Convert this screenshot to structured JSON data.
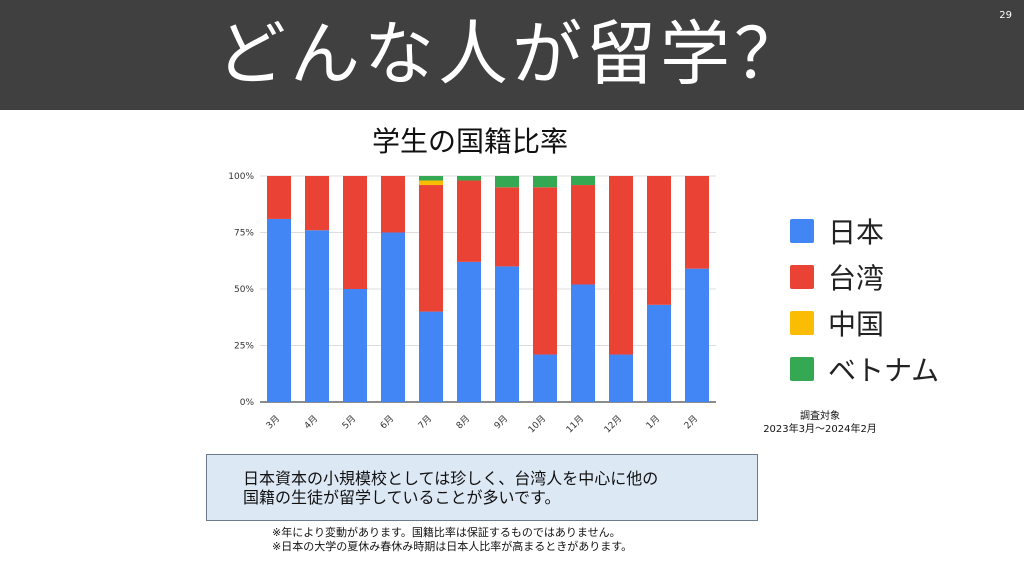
{
  "page": {
    "title": "どんな人が留学？",
    "page_number": "29"
  },
  "chart_data": {
    "type": "bar",
    "stacked": true,
    "title": "学生の国籍比率",
    "categories": [
      "3月",
      "4月",
      "5月",
      "6月",
      "7月",
      "8月",
      "9月",
      "10月",
      "11月",
      "12月",
      "1月",
      "2月"
    ],
    "series": [
      {
        "name": "日本",
        "color": "#4285f4",
        "values": [
          81,
          76,
          50,
          75,
          40,
          62,
          60,
          21,
          52,
          21,
          43,
          59
        ]
      },
      {
        "name": "台湾",
        "color": "#ea4335",
        "values": [
          19,
          24,
          50,
          25,
          56,
          36,
          35,
          74,
          44,
          79,
          57,
          41
        ]
      },
      {
        "name": "中国",
        "color": "#fbbc04",
        "values": [
          0,
          0,
          0,
          0,
          2,
          0,
          0,
          0,
          0,
          0,
          0,
          0
        ]
      },
      {
        "name": "ベトナム",
        "color": "#34a853",
        "values": [
          0,
          0,
          0,
          0,
          2,
          2,
          5,
          5,
          4,
          0,
          0,
          0
        ]
      }
    ],
    "yticks": [
      "0%",
      "25%",
      "50%",
      "75%",
      "100%"
    ],
    "ylim": [
      0,
      100
    ],
    "grid": true,
    "legend": "right"
  },
  "period": {
    "label": "調査対象",
    "range": "2023年3月～2024年2月"
  },
  "callout": {
    "line1": "日本資本の小規模校としては珍しく、台湾人を中心に他の",
    "line2": "国籍の生徒が留学していることが多いです。"
  },
  "notes": [
    "※年により変動があります。国籍比率は保証するものではありません。",
    "※日本の大学の夏休み春休み時期は日本人比率が高まるときがあります。"
  ]
}
